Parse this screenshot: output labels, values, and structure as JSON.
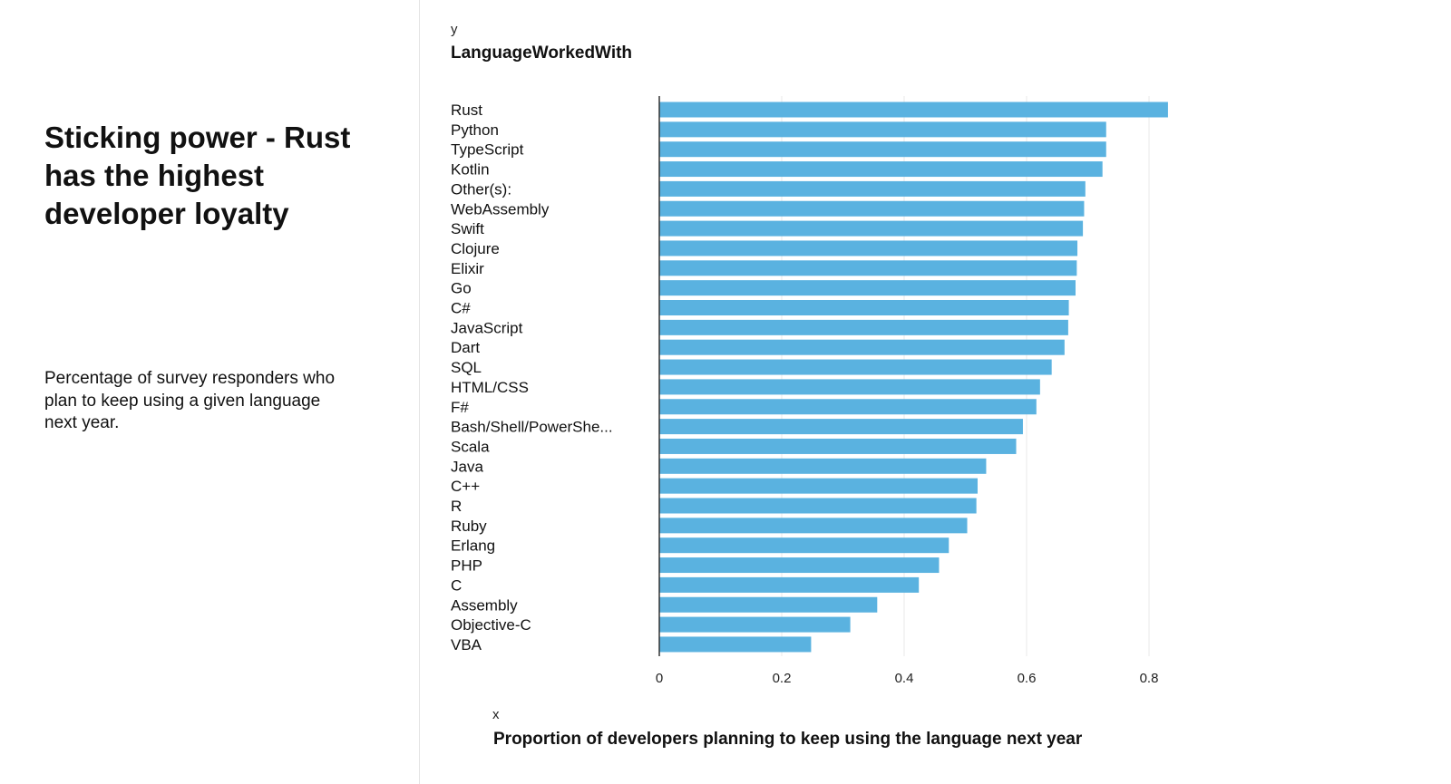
{
  "left_panel": {
    "title": "Sticking power - Rust has the highest developer loyalty",
    "subtitle": "Percentage of survey responders who plan to keep using a given language next year."
  },
  "chart_data": {
    "type": "bar",
    "orientation": "horizontal",
    "y_var": "y",
    "ylabel": "LanguageWorkedWith",
    "x_var": "x",
    "xlabel": "Proportion of developers planning to keep using the language next year",
    "categories": [
      "Rust",
      "Python",
      "TypeScript",
      "Kotlin",
      "Other(s):",
      "WebAssembly",
      "Swift",
      "Clojure",
      "Elixir",
      "Go",
      "C#",
      "JavaScript",
      "Dart",
      "SQL",
      "HTML/CSS",
      "F#",
      "Bash/Shell/PowerShe...",
      "Scala",
      "Java",
      "C++",
      "R",
      "Ruby",
      "Erlang",
      "PHP",
      "C",
      "Assembly",
      "Objective-C",
      "VBA"
    ],
    "values": [
      0.831,
      0.73,
      0.73,
      0.724,
      0.696,
      0.694,
      0.692,
      0.683,
      0.682,
      0.68,
      0.669,
      0.668,
      0.662,
      0.641,
      0.622,
      0.616,
      0.594,
      0.583,
      0.534,
      0.52,
      0.518,
      0.503,
      0.473,
      0.457,
      0.424,
      0.356,
      0.312,
      0.248
    ],
    "xticks": [
      "0",
      "0.2",
      "0.4",
      "0.6",
      "0.8"
    ],
    "xlim": [
      0,
      0.9
    ],
    "grid": true,
    "bar_color": "#5ab2e0",
    "grid_color": "#e8e8e8",
    "axis_color": "#333333"
  }
}
